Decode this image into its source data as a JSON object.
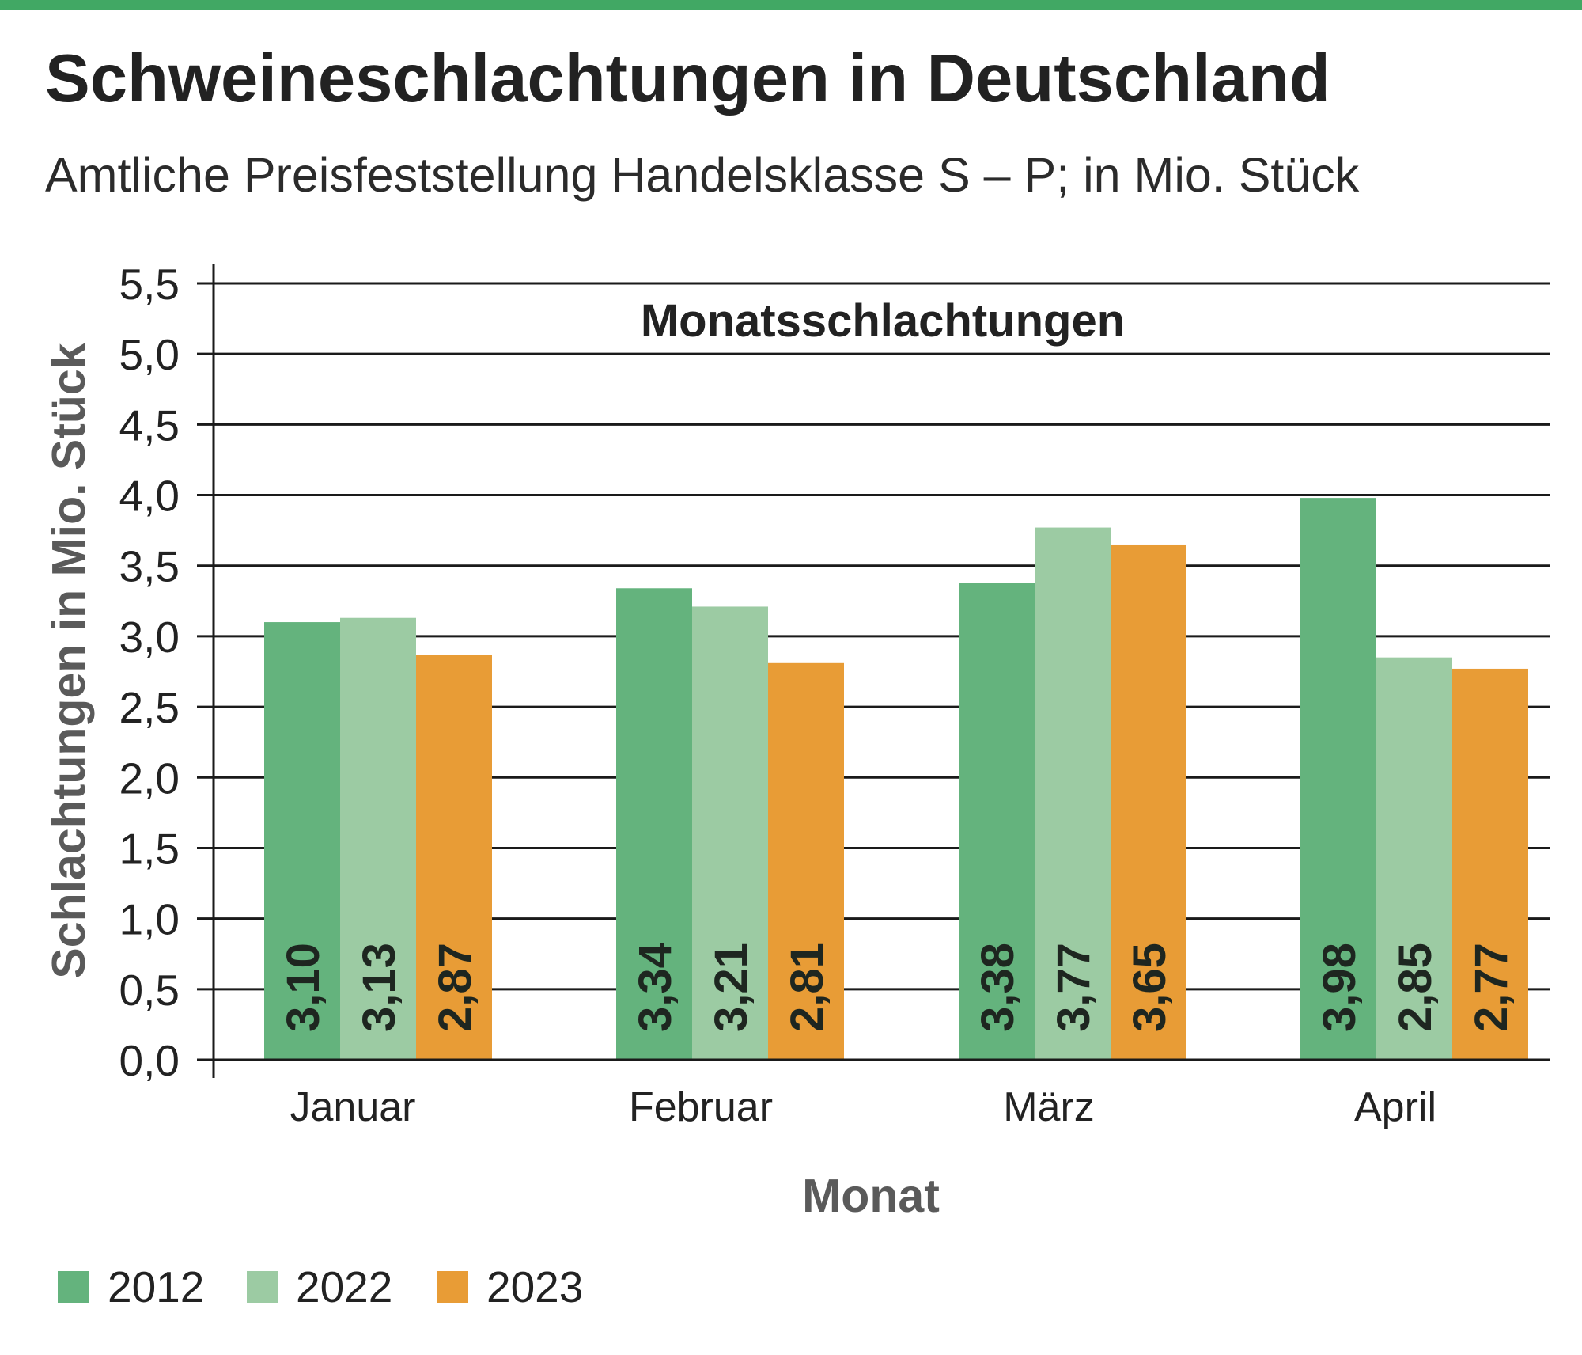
{
  "colors": {
    "accent_bar": "#41a864"
  },
  "chart_data": {
    "type": "bar",
    "title": "Schweineschlachtungen in Deutschland",
    "subtitle": "Amtliche Preisfeststellung Handelsklasse S – P; in Mio. Stück",
    "inner_title": "Monatsschlachtungen",
    "xlabel": "Monat",
    "ylabel": "Schlachtungen in Mio. Stück",
    "ylim": [
      0,
      5.5
    ],
    "yticks": [
      0,
      0.5,
      1,
      1.5,
      2,
      2.5,
      3,
      3.5,
      4,
      4.5,
      5,
      5.5
    ],
    "ytick_labels": [
      "0,0",
      "0,5",
      "1,0",
      "1,5",
      "2,0",
      "2,5",
      "3,0",
      "3,5",
      "4,0",
      "4,5",
      "5,0",
      "5,5"
    ],
    "categories": [
      "Januar",
      "Februar",
      "März",
      "April"
    ],
    "series": [
      {
        "name": "2012",
        "color": "#64b37d",
        "values": [
          3.1,
          3.34,
          3.38,
          3.98
        ],
        "labels": [
          "3,10",
          "3,34",
          "3,38",
          "3,98"
        ]
      },
      {
        "name": "2022",
        "color": "#9ccba3",
        "values": [
          3.13,
          3.21,
          3.77,
          2.85
        ],
        "labels": [
          "3,13",
          "3,21",
          "3,77",
          "2,85"
        ]
      },
      {
        "name": "2023",
        "color": "#e89c36",
        "values": [
          2.87,
          2.81,
          3.65,
          2.77
        ],
        "labels": [
          "2,87",
          "2,81",
          "3,65",
          "2,77"
        ]
      }
    ],
    "grid": true,
    "legend": "bottom-left"
  }
}
